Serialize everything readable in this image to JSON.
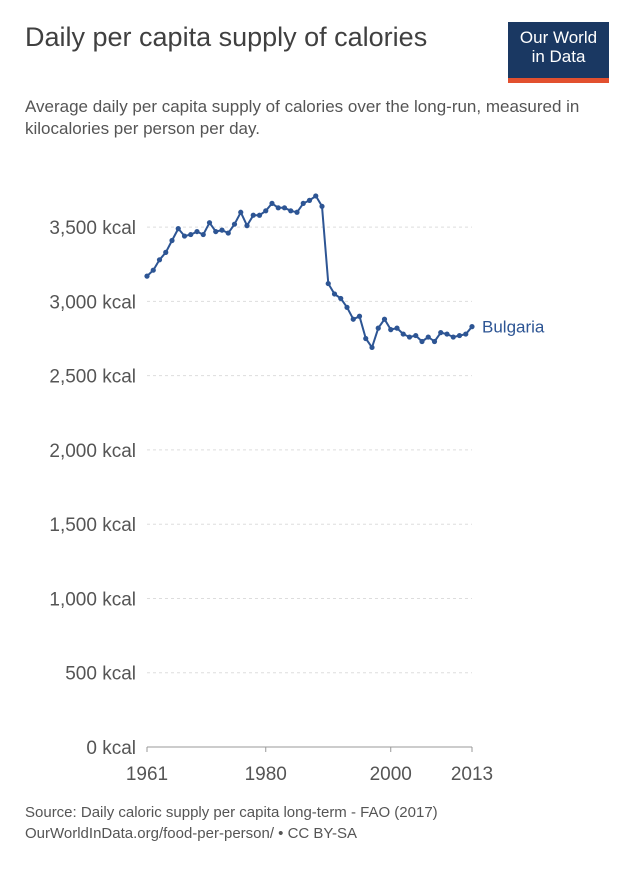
{
  "header": {
    "title": "Daily per capita supply of calories",
    "subtitle": "Average daily per capita supply of calories over the long-run, measured in kilocalories per person per day."
  },
  "logo": {
    "line1": "Our World",
    "line2": "in Data",
    "background": "#1a3862",
    "accent": "#e2502f"
  },
  "footer": {
    "source": "Source: Daily caloric supply per capita long-term - FAO (2017)",
    "link": "OurWorldInData.org/food-per-person/ • CC BY-SA"
  },
  "chart_data": {
    "type": "line",
    "title": "Daily per capita supply of calories",
    "xlabel": "",
    "ylabel": "",
    "xlim": [
      1961,
      2013
    ],
    "ylim": [
      0,
      3750
    ],
    "yticks": [
      0,
      500,
      1000,
      1500,
      2000,
      2500,
      3000,
      3500
    ],
    "ytick_labels": [
      "0 kcal",
      "500 kcal",
      "1,000 kcal",
      "1,500 kcal",
      "2,000 kcal",
      "2,500 kcal",
      "3,000 kcal",
      "3,500 kcal"
    ],
    "xticks": [
      1961,
      1980,
      2000,
      2013
    ],
    "xtick_labels": [
      "1961",
      "1980",
      "2000",
      "2013"
    ],
    "grid": "horizontal dashed",
    "series": [
      {
        "name": "Bulgaria",
        "color": "#2d5594",
        "x": [
          1961,
          1962,
          1963,
          1964,
          1965,
          1966,
          1967,
          1968,
          1969,
          1970,
          1971,
          1972,
          1973,
          1974,
          1975,
          1976,
          1977,
          1978,
          1979,
          1980,
          1981,
          1982,
          1983,
          1984,
          1985,
          1986,
          1987,
          1988,
          1989,
          1990,
          1991,
          1992,
          1993,
          1994,
          1995,
          1996,
          1997,
          1998,
          1999,
          2000,
          2001,
          2002,
          2003,
          2004,
          2005,
          2006,
          2007,
          2008,
          2009,
          2010,
          2011,
          2012,
          2013
        ],
        "values": [
          3170,
          3210,
          3280,
          3330,
          3410,
          3490,
          3440,
          3450,
          3470,
          3450,
          3530,
          3470,
          3480,
          3460,
          3520,
          3600,
          3510,
          3580,
          3580,
          3610,
          3660,
          3630,
          3630,
          3610,
          3600,
          3660,
          3680,
          3710,
          3640,
          3120,
          3050,
          3020,
          2960,
          2880,
          2900,
          2750,
          2690,
          2820,
          2880,
          2810,
          2820,
          2780,
          2760,
          2770,
          2730,
          2760,
          2730,
          2790,
          2780,
          2760,
          2770,
          2780,
          2830
        ]
      }
    ]
  }
}
